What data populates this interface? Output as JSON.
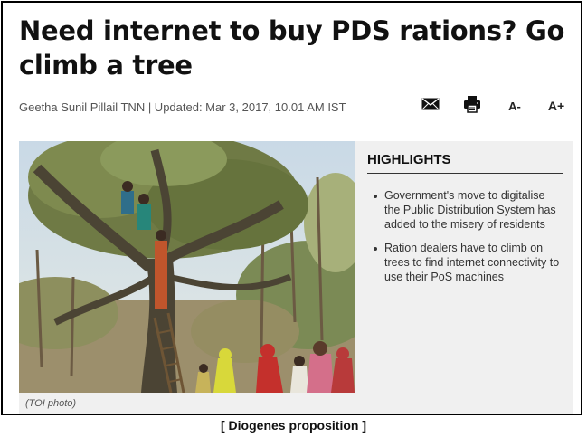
{
  "article": {
    "headline": "Need internet to buy PDS rations? Go climb a tree",
    "byline": "Geetha Sunil Pillail TNN | Updated: Mar 3, 2017, 10.01 AM IST"
  },
  "toolbar": {
    "mail_icon": "mail-icon",
    "print_icon": "print-icon",
    "decrease_font_label": "A-",
    "increase_font_label": "A+"
  },
  "media": {
    "caption": "(TOI photo)"
  },
  "highlights": {
    "title": "HIGHLIGHTS",
    "items": [
      "Government's move to digitalise the Public Distribution System has added to the misery of residents",
      "Ration dealers have to climb on trees to find internet connectivity to use their PoS machines"
    ]
  },
  "footer": {
    "caption": "[  Diogenes proposition  ]"
  }
}
